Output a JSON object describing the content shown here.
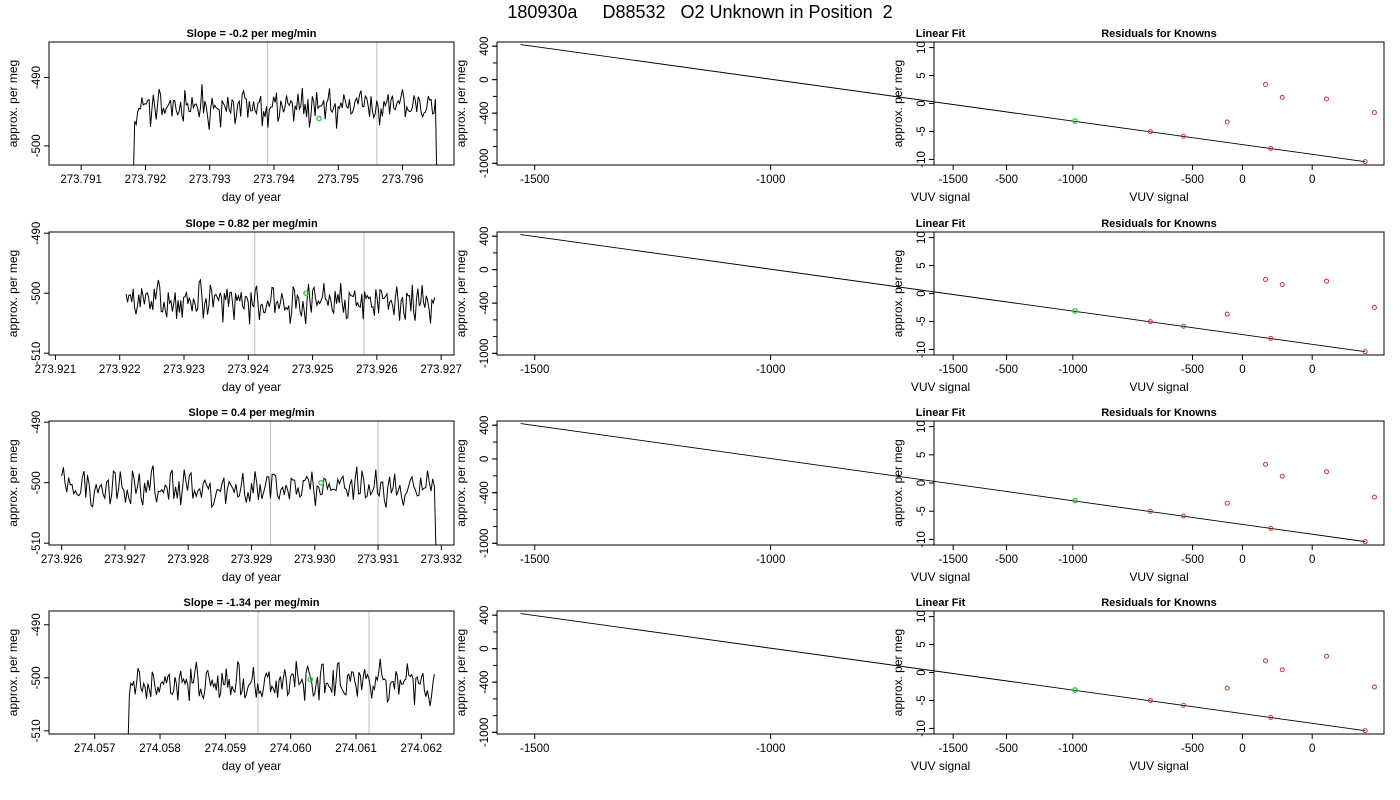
{
  "main_title": "180930a     D88532   O2 Unknown in Position  2",
  "colors": {
    "line": "#000000",
    "unknown": "#33cc33",
    "known": "#cc3333",
    "marker": "#c8c8c8"
  },
  "chart_data": [
    {
      "type": "line",
      "title": "Slope =  -0.2  per meg/min",
      "xlabel": "day of year",
      "ylabel": "approx. per meg",
      "xlim": [
        273.7905,
        273.7968
      ],
      "ylim": [
        -502.8,
        -484.8
      ],
      "xticks": [
        "273.791",
        "273.792",
        "273.793",
        "273.794",
        "273.795",
        "273.796"
      ],
      "yticks": [
        "-490",
        "-500"
      ],
      "trace_x_range": [
        273.7917,
        273.7966
      ],
      "trace_y_base": -494.3,
      "reference_lines_x": [
        273.7939,
        273.7956
      ],
      "unknown_point": {
        "x": 273.7947,
        "y": -496.0
      }
    },
    {
      "type": "scatter",
      "title": "Linear Fit",
      "xlabel": "VUV signal",
      "ylabel": "approx. per meg",
      "xlim": [
        -1580,
        300
      ],
      "ylim": [
        -1020,
        450
      ],
      "xticks": [
        "-1500",
        "-1000",
        "-500",
        "0"
      ],
      "yticks": [
        "400",
        "0",
        "-400",
        "-1000"
      ],
      "fit_line": {
        "x": [
          -1530,
          260
        ],
        "y": [
          420,
          -980
        ]
      },
      "unknown": {
        "x": -355,
        "y": -494
      },
      "knowns": {
        "x": [
          -195,
          -125,
          60,
          260
        ],
        "y": [
          -621,
          -676,
          -822,
          -980
        ]
      }
    },
    {
      "type": "scatter",
      "title": "Residuals for Knowns",
      "xlabel": "VUV signal",
      "ylabel": "approx. per meg",
      "xlim": [
        -1580,
        300
      ],
      "ylim": [
        -11,
        11
      ],
      "xticks": [
        "-1500",
        "-1000",
        "-500",
        "0"
      ],
      "yticks": [
        "10",
        "5",
        "0",
        "-5",
        "-10"
      ],
      "knowns": {
        "x": [
          -355,
          -195,
          -125,
          60,
          260
        ],
        "y": [
          -3.3,
          3.4,
          1.1,
          0.8,
          -1.6
        ]
      }
    },
    {
      "type": "line",
      "title": "Slope =  0.82  per meg/min",
      "xlabel": "day of year",
      "ylabel": "approx. per meg",
      "xlim": [
        273.9209,
        273.9272
      ],
      "ylim": [
        -510.3,
        -489.8
      ],
      "xticks": [
        "273.921",
        "273.922",
        "273.923",
        "273.924",
        "273.925",
        "273.926",
        "273.927"
      ],
      "yticks": [
        "-490",
        "-500",
        "-510"
      ],
      "trace_x_range": [
        273.9221,
        273.9269
      ],
      "trace_y_base": -501.5,
      "reference_lines_x": [
        273.9241,
        273.9258
      ],
      "unknown_point": {
        "x": 273.9249,
        "y": -500.0
      }
    },
    {
      "type": "scatter",
      "title": "Linear Fit",
      "xlabel": "VUV signal",
      "ylabel": "approx. per meg",
      "xlim": [
        -1580,
        300
      ],
      "ylim": [
        -1020,
        450
      ],
      "xticks": [
        "-1500",
        "-1000",
        "-500",
        "0"
      ],
      "yticks": [
        "400",
        "0",
        "-400",
        "-1000"
      ],
      "fit_line": {
        "x": [
          -1530,
          260
        ],
        "y": [
          420,
          -980
        ]
      },
      "unknown": {
        "x": -355,
        "y": -494
      },
      "knowns": {
        "x": [
          -195,
          -125,
          60,
          260
        ],
        "y": [
          -621,
          -676,
          -822,
          -980
        ]
      }
    },
    {
      "type": "scatter",
      "title": "Residuals for Knowns",
      "xlabel": "VUV signal",
      "ylabel": "approx. per meg",
      "xlim": [
        -1580,
        300
      ],
      "ylim": [
        -11,
        11
      ],
      "xticks": [
        "-1500",
        "-1000",
        "-500",
        "0"
      ],
      "yticks": [
        "10",
        "5",
        "0",
        "-5",
        "-10"
      ],
      "knowns": {
        "x": [
          -355,
          -195,
          -125,
          60,
          260
        ],
        "y": [
          -3.7,
          2.5,
          1.6,
          2.2,
          -2.5
        ]
      }
    },
    {
      "type": "line",
      "title": "Slope =  0.4  per meg/min",
      "xlabel": "day of year",
      "ylabel": "approx. per meg",
      "xlim": [
        273.9258,
        273.9322
      ],
      "ylim": [
        -510.3,
        -489.8
      ],
      "xticks": [
        "273.926",
        "273.927",
        "273.928",
        "273.929",
        "273.930",
        "273.931",
        "273.932"
      ],
      "yticks": [
        "-490",
        "-500",
        "-510"
      ],
      "trace_x_range": [
        273.926,
        273.932
      ],
      "trace_y_base": -500.8,
      "reference_lines_x": [
        273.9293,
        273.931
      ],
      "unknown_point": {
        "x": 273.9301,
        "y": -500.0
      }
    },
    {
      "type": "scatter",
      "title": "Linear Fit",
      "xlabel": "VUV signal",
      "ylabel": "approx. per meg",
      "xlim": [
        -1580,
        300
      ],
      "ylim": [
        -1020,
        450
      ],
      "xticks": [
        "-1500",
        "-1000",
        "-500",
        "0"
      ],
      "yticks": [
        "400",
        "0",
        "-400",
        "-1000"
      ],
      "fit_line": {
        "x": [
          -1530,
          260
        ],
        "y": [
          420,
          -980
        ]
      },
      "unknown": {
        "x": -355,
        "y": -494
      },
      "knowns": {
        "x": [
          -195,
          -125,
          60,
          260
        ],
        "y": [
          -621,
          -676,
          -822,
          -980
        ]
      }
    },
    {
      "type": "scatter",
      "title": "Residuals for Knowns",
      "xlabel": "VUV signal",
      "ylabel": "approx. per meg",
      "xlim": [
        -1580,
        300
      ],
      "ylim": [
        -11,
        11
      ],
      "xticks": [
        "-1500",
        "-1000",
        "-500",
        "0"
      ],
      "yticks": [
        "10",
        "5",
        "0",
        "-5",
        "-10"
      ],
      "knowns": {
        "x": [
          -355,
          -195,
          -125,
          60,
          260
        ],
        "y": [
          -3.6,
          3.3,
          1.2,
          2.0,
          -2.5
        ]
      }
    },
    {
      "type": "line",
      "title": "Slope =  -1.34  per meg/min",
      "xlabel": "day of year",
      "ylabel": "approx. per meg",
      "xlim": [
        274.0563,
        274.0625
      ],
      "ylim": [
        -510.6,
        -487.4
      ],
      "xticks": [
        "274.057",
        "274.058",
        "274.059",
        "274.060",
        "274.061",
        "274.062"
      ],
      "yticks": [
        "-490",
        "-500",
        "-510"
      ],
      "trace_x_range": [
        274.0574,
        274.0622
      ],
      "trace_y_base": -501.0,
      "reference_lines_x": [
        274.0595,
        274.0612
      ],
      "unknown_point": {
        "x": 274.0603,
        "y": -500.3
      }
    },
    {
      "type": "scatter",
      "title": "Linear Fit",
      "xlabel": "VUV signal",
      "ylabel": "approx. per meg",
      "xlim": [
        -1580,
        300
      ],
      "ylim": [
        -1020,
        450
      ],
      "xticks": [
        "-1500",
        "-1000",
        "-500",
        "0"
      ],
      "yticks": [
        "400",
        "0",
        "-400",
        "-1000"
      ],
      "fit_line": {
        "x": [
          -1530,
          260
        ],
        "y": [
          420,
          -980
        ]
      },
      "unknown": {
        "x": -355,
        "y": -494
      },
      "knowns": {
        "x": [
          -195,
          -125,
          60,
          260
        ],
        "y": [
          -621,
          -676,
          -822,
          -980
        ]
      }
    },
    {
      "type": "scatter",
      "title": "Residuals for Knowns",
      "xlabel": "VUV signal",
      "ylabel": "approx. per meg",
      "xlim": [
        -1580,
        300
      ],
      "ylim": [
        -11,
        11
      ],
      "xticks": [
        "-1500",
        "-1000",
        "-500",
        "0"
      ],
      "yticks": [
        "10",
        "5",
        "0",
        "-5",
        "-10"
      ],
      "knowns": {
        "x": [
          -355,
          -195,
          -125,
          60,
          260
        ],
        "y": [
          -2.8,
          2.1,
          0.5,
          2.9,
          -2.6
        ]
      }
    }
  ]
}
